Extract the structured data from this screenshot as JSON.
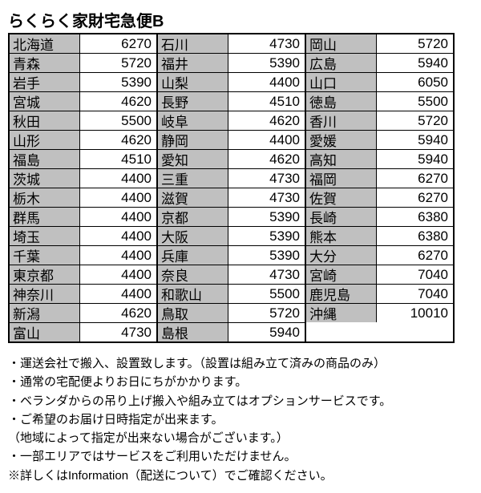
{
  "title": "らくらく家財宅急便B",
  "columns": [
    [
      {
        "pref": "北海道",
        "price": 6270
      },
      {
        "pref": "青森",
        "price": 5720
      },
      {
        "pref": "岩手",
        "price": 5390
      },
      {
        "pref": "宮城",
        "price": 4620
      },
      {
        "pref": "秋田",
        "price": 5500
      },
      {
        "pref": "山形",
        "price": 4620
      },
      {
        "pref": "福島",
        "price": 4510
      },
      {
        "pref": "茨城",
        "price": 4400
      },
      {
        "pref": "栃木",
        "price": 4400
      },
      {
        "pref": "群馬",
        "price": 4400
      },
      {
        "pref": "埼玉",
        "price": 4400
      },
      {
        "pref": "千葉",
        "price": 4400
      },
      {
        "pref": "東京都",
        "price": 4400
      },
      {
        "pref": "神奈川",
        "price": 4400
      },
      {
        "pref": "新潟",
        "price": 4620
      },
      {
        "pref": "富山",
        "price": 4730
      }
    ],
    [
      {
        "pref": "石川",
        "price": 4730
      },
      {
        "pref": "福井",
        "price": 5390
      },
      {
        "pref": "山梨",
        "price": 4400
      },
      {
        "pref": "長野",
        "price": 4510
      },
      {
        "pref": "岐阜",
        "price": 4620
      },
      {
        "pref": "静岡",
        "price": 4400
      },
      {
        "pref": "愛知",
        "price": 4620
      },
      {
        "pref": "三重",
        "price": 4730
      },
      {
        "pref": "滋賀",
        "price": 4730
      },
      {
        "pref": "京都",
        "price": 5390
      },
      {
        "pref": "大阪",
        "price": 5390
      },
      {
        "pref": "兵庫",
        "price": 5390
      },
      {
        "pref": "奈良",
        "price": 4730
      },
      {
        "pref": "和歌山",
        "price": 5500
      },
      {
        "pref": "鳥取",
        "price": 5720
      },
      {
        "pref": "島根",
        "price": 5940
      }
    ],
    [
      {
        "pref": "岡山",
        "price": 5720
      },
      {
        "pref": "広島",
        "price": 5940
      },
      {
        "pref": "山口",
        "price": 6050
      },
      {
        "pref": "徳島",
        "price": 5500
      },
      {
        "pref": "香川",
        "price": 5720
      },
      {
        "pref": "愛媛",
        "price": 5940
      },
      {
        "pref": "高知",
        "price": 5940
      },
      {
        "pref": "福岡",
        "price": 6270
      },
      {
        "pref": "佐賀",
        "price": 6270
      },
      {
        "pref": "長崎",
        "price": 6380
      },
      {
        "pref": "熊本",
        "price": 6380
      },
      {
        "pref": "大分",
        "price": 6270
      },
      {
        "pref": "宮崎",
        "price": 7040
      },
      {
        "pref": "鹿児島",
        "price": 7040
      },
      {
        "pref": "沖縄",
        "price": 10010
      }
    ]
  ],
  "notes": [
    "・運送会社で搬入、設置致します。（設置は組み立て済みの商品のみ）",
    "・通常の宅配便よりお日にちがかかります。",
    "・ベランダからの吊り上げ搬入や組み立てはオプションサービスです。",
    "・ご希望のお届け日時指定が出来ます。",
    "（地域によって指定が出来ない場合がございます。）",
    "・一部エリアではサービスをご利用いただけません。",
    "※詳しくはInformation（配送について）でご確認ください。"
  ]
}
